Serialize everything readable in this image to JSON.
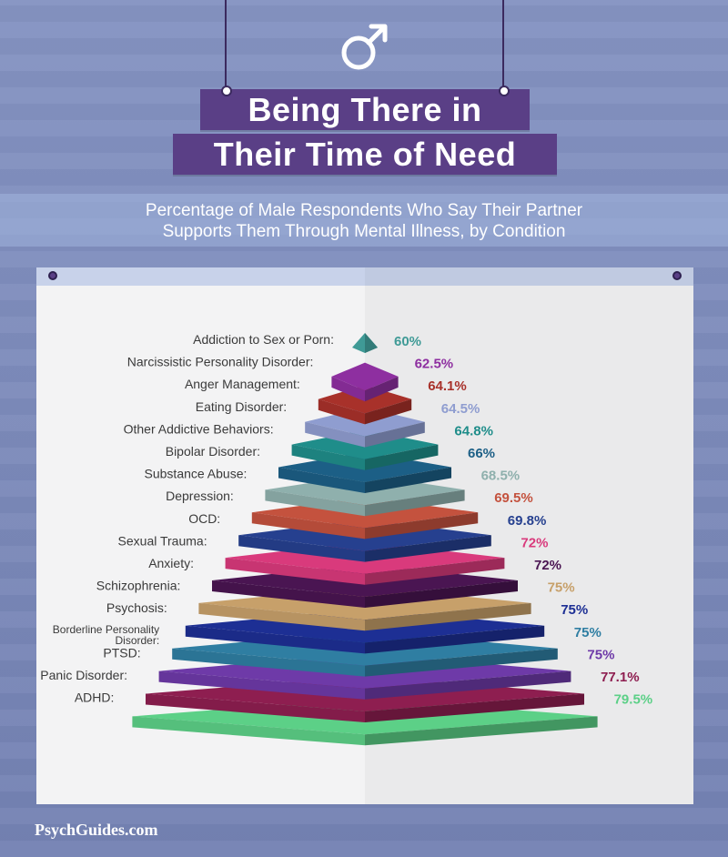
{
  "title_line1": "Being There in",
  "title_line2": "Their Time of Need",
  "subtitle_line1": "Percentage of Male Respondents Who Say Their Partner",
  "subtitle_line2": "Supports Them Through Mental Illness, by Condition",
  "footer": "PsychGuides.com",
  "icons": {
    "header": "male-symbol-icon"
  },
  "chart_data": {
    "type": "bar",
    "style": "stacked pyramid",
    "categories": [
      "Addiction to Sex or Porn:",
      "Narcissistic Personality Disorder:",
      "Anger Management:",
      "Eating Disorder:",
      "Other Addictive Behaviors:",
      "Bipolar Disorder:",
      "Substance Abuse:",
      "Depression:",
      "OCD:",
      "Sexual Trauma:",
      "Anxiety:",
      "Schizophrenia:",
      "Psychosis:",
      "Borderline Personality Disorder:",
      "PTSD:",
      "Panic Disorder:",
      "ADHD:"
    ],
    "values": [
      60,
      62.5,
      64.1,
      64.5,
      64.8,
      66,
      68.5,
      69.5,
      69.8,
      72,
      72,
      75,
      75,
      75,
      75,
      77.1,
      79.5
    ],
    "value_labels": [
      "60%",
      "62.5%",
      "64.1%",
      "64.5%",
      "64.8%",
      "66%",
      "68.5%",
      "69.5%",
      "69.8%",
      "72%",
      "72%",
      "75%",
      "75%",
      "75%",
      "75%",
      "77.1%",
      "79.5%"
    ],
    "colors": [
      "#3f9a96",
      "#8e2fa0",
      "#a8312a",
      "#8f9dd0",
      "#1f8d8a",
      "#1c5f86",
      "#8fb0ad",
      "#c4523e",
      "#26408f",
      "#d93a7c",
      "#4a1552",
      "#c7a06a",
      "#1d2f94",
      "#2f7ea2",
      "#6e3aa8",
      "#8e1e50",
      "#5cd087"
    ]
  }
}
